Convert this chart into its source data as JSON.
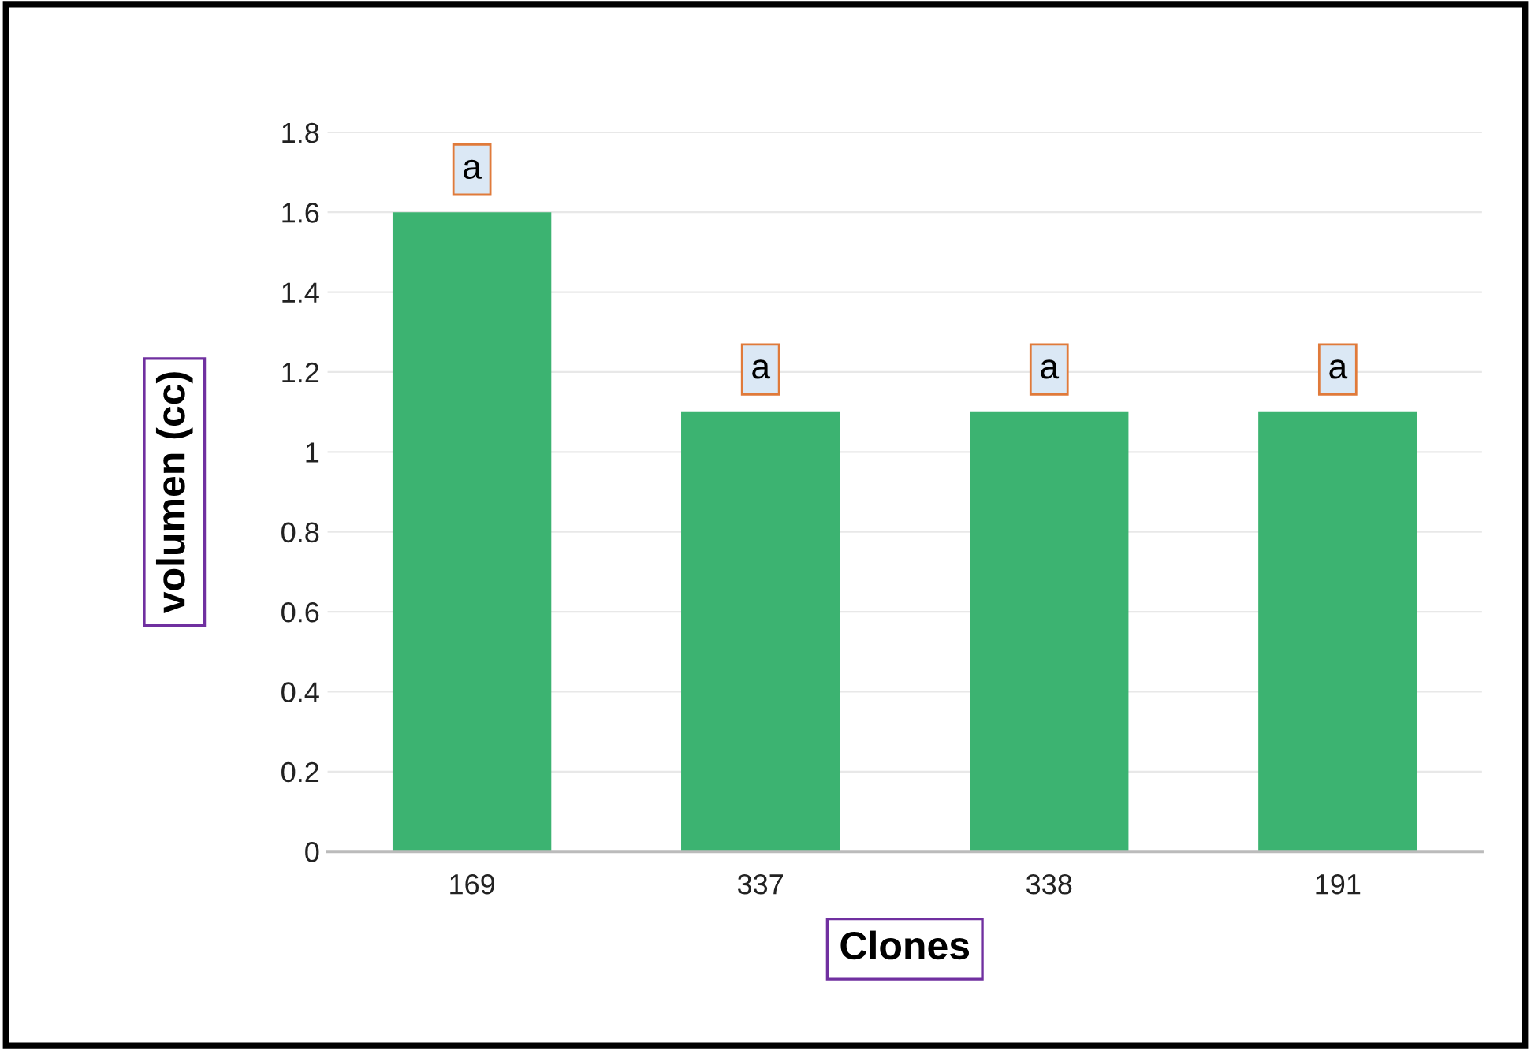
{
  "chart_data": {
    "type": "bar",
    "xlabel": "Clones",
    "ylabel": "volumen (cc)",
    "categories": [
      "169",
      "337",
      "338",
      "191"
    ],
    "values": [
      1.6,
      1.1,
      1.1,
      1.1
    ],
    "color": "#3cb371",
    "ylim": [
      0,
      1.8
    ],
    "yticks": [
      0,
      0.2,
      0.4,
      0.6,
      0.8,
      1,
      1.2,
      1.4,
      1.6,
      1.8
    ],
    "grid": "y",
    "annotations": [
      {
        "text": "a",
        "x": "169",
        "y": 1.6
      },
      {
        "text": "a",
        "x": "337",
        "y": 1.1
      },
      {
        "text": "a",
        "x": "338",
        "y": 1.1
      },
      {
        "text": "a",
        "x": "191",
        "y": 1.1
      }
    ]
  }
}
